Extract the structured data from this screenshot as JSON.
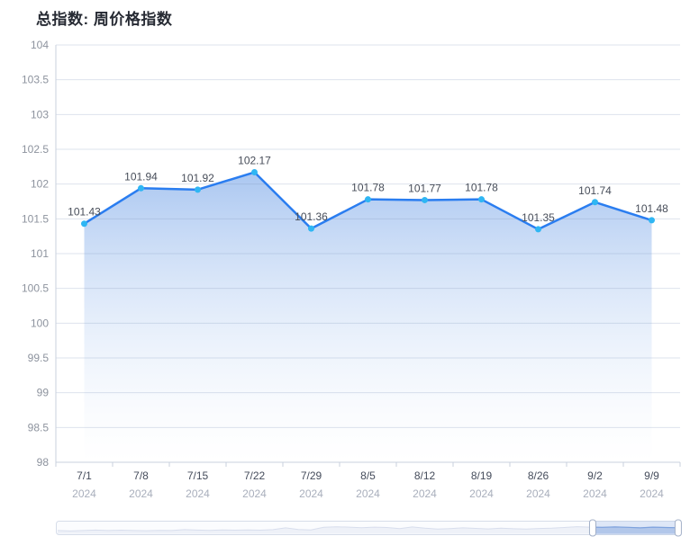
{
  "chart_data": {
    "type": "line",
    "title": "总指数: 周价格指数",
    "categories": [
      "7/1",
      "7/8",
      "7/15",
      "7/22",
      "7/29",
      "8/5",
      "8/12",
      "8/19",
      "8/26",
      "9/2",
      "9/9"
    ],
    "category_year": "2024",
    "values": [
      101.43,
      101.94,
      101.92,
      102.17,
      101.36,
      101.78,
      101.77,
      101.78,
      101.35,
      101.74,
      101.48
    ],
    "data_labels": [
      "101.43",
      "101.94",
      "101.92",
      "102.17",
      "101.36",
      "101.78",
      "101.77",
      "101.78",
      "101.35",
      "101.74",
      "101.48"
    ],
    "xlabel": "",
    "ylabel": "",
    "ylim": [
      98,
      104
    ],
    "ytick_step": 0.5,
    "ytick_labels": [
      "98",
      "98.5",
      "99",
      "99.5",
      "100",
      "100.5",
      "101",
      "101.5",
      "102",
      "102.5",
      "103",
      "103.5",
      "104"
    ],
    "grid": true,
    "legend": "none",
    "colors": {
      "line": "#2a7df0",
      "marker": "#2fb6f3",
      "area_top": "#a6c4f0",
      "area_bottom": "#ffffff",
      "data_label": "#474d59",
      "y_axis_label": "#8d939e",
      "x_label_primary": "#454c5b",
      "x_label_secondary": "#a9afbc",
      "axis_line": "#c9d1de",
      "grid_line": "rgba(123,145,183,0.25)"
    },
    "datazoom": {
      "start_fraction": 0.86,
      "end_fraction": 0.997,
      "bar_fill": "#fbfcfe",
      "bar_border": "#d6dde9",
      "preview_line": "#d8deed",
      "preview_fill": "#eef1f8",
      "window_fill": "rgba(96,140,214,0.18)",
      "window_preview_fill": "rgba(130,166,224,0.42)",
      "window_preview_line": "#7fa3de",
      "handle_fill": "#ffffff",
      "handle_border": "#a3b0c8",
      "preview": [
        0.3,
        0.26,
        0.3,
        0.34,
        0.3,
        0.33,
        0.3,
        0.28,
        0.32,
        0.3,
        0.38,
        0.34,
        0.31,
        0.35,
        0.33,
        0.36,
        0.33,
        0.38,
        0.55,
        0.4,
        0.36,
        0.6,
        0.65,
        0.62,
        0.57,
        0.62,
        0.58,
        0.48,
        0.63,
        0.52,
        0.44,
        0.48,
        0.55,
        0.5,
        0.45,
        0.52,
        0.47,
        0.44,
        0.49,
        0.52,
        0.58,
        0.66,
        0.62,
        0.6,
        0.63,
        0.6,
        0.55,
        0.62,
        0.58,
        0.56
      ]
    }
  }
}
